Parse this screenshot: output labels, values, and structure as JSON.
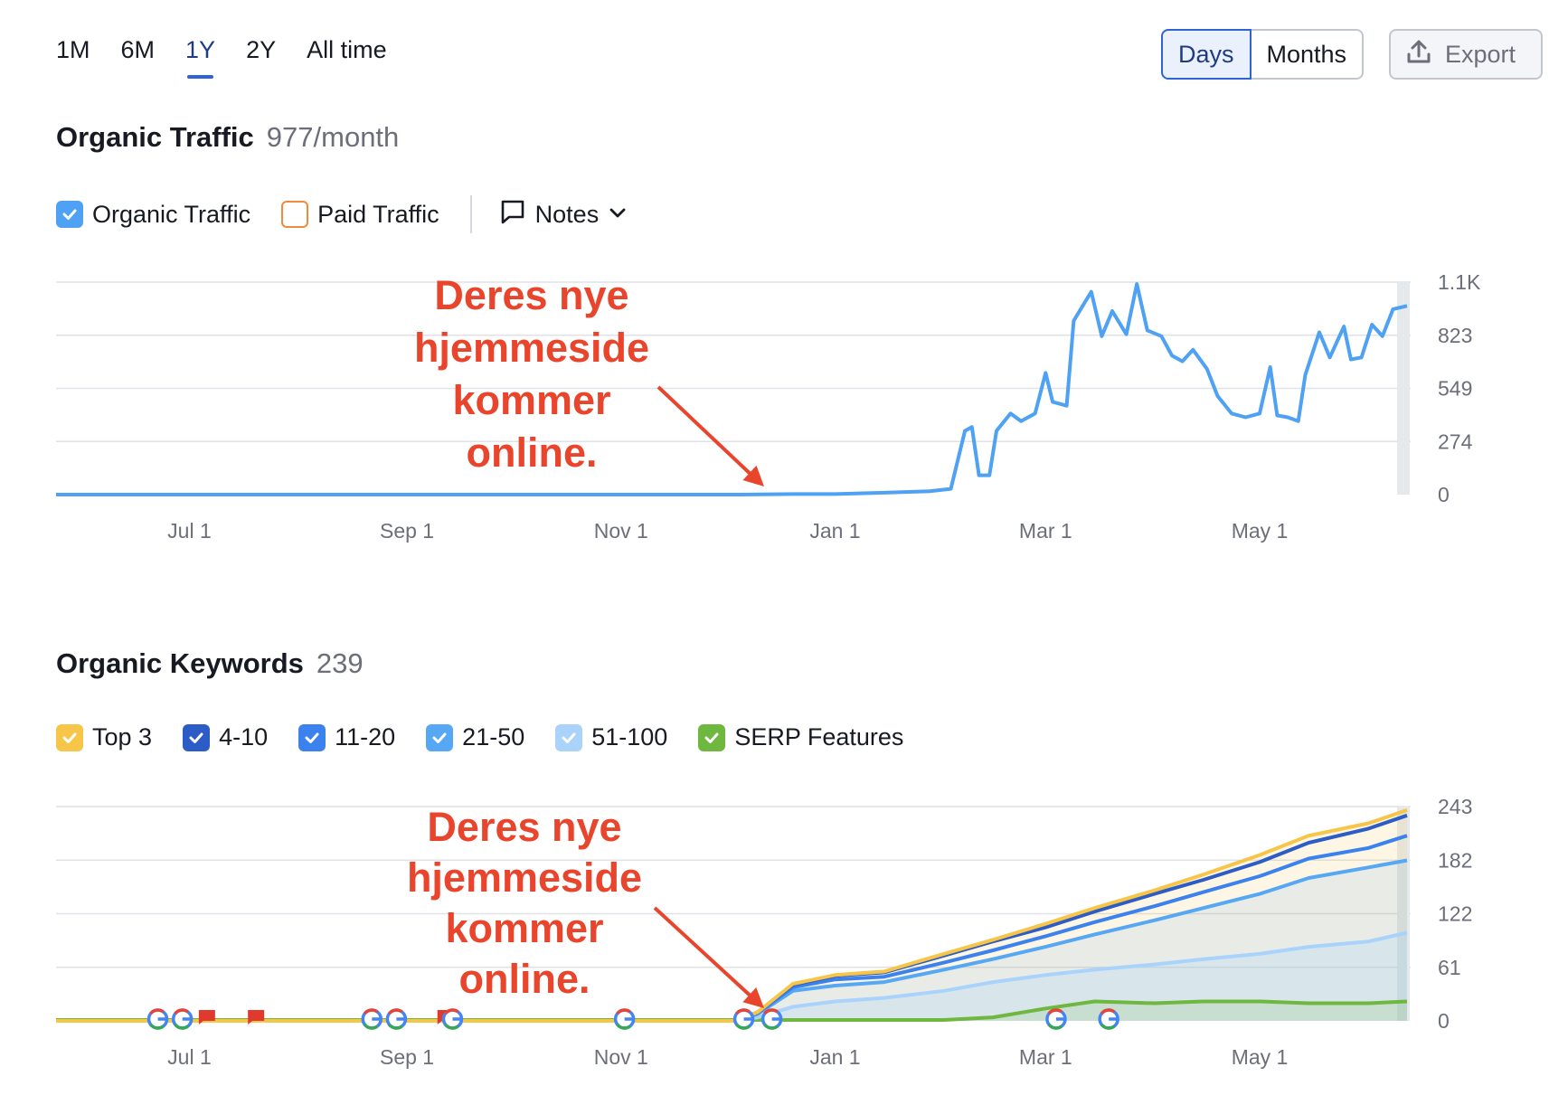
{
  "period_tabs": [
    {
      "label": "1M",
      "active": false
    },
    {
      "label": "6M",
      "active": false
    },
    {
      "label": "1Y",
      "active": true
    },
    {
      "label": "2Y",
      "active": false
    },
    {
      "label": "All time",
      "active": false
    }
  ],
  "unit_toggle": {
    "days": "Days",
    "months": "Months",
    "selected": "Days"
  },
  "export": {
    "label": "Export",
    "icon": "upload-icon"
  },
  "traffic": {
    "title": "Organic Traffic",
    "value": "977/month",
    "legend": [
      {
        "label": "Organic Traffic",
        "checked": true,
        "color": "#4ea1f3"
      },
      {
        "label": "Paid Traffic",
        "checked": false,
        "color": "#f08a3c"
      }
    ],
    "notes_label": "Notes"
  },
  "keywords": {
    "title": "Organic Keywords",
    "value": "239",
    "legend": [
      {
        "label": "Top 3",
        "checked": true,
        "color": "#f7c548"
      },
      {
        "label": "4-10",
        "checked": true,
        "color": "#2c5cc5"
      },
      {
        "label": "11-20",
        "checked": true,
        "color": "#3b82ef"
      },
      {
        "label": "21-50",
        "checked": true,
        "color": "#56a8f5"
      },
      {
        "label": "51-100",
        "checked": true,
        "color": "#a9d3fb"
      },
      {
        "label": "SERP Features",
        "checked": true,
        "color": "#6fb83f"
      }
    ]
  },
  "annotation": {
    "lines": [
      "Deres nye",
      "hjemmeside",
      "kommer",
      "online."
    ],
    "color": "#e8452c"
  },
  "chart_data": [
    {
      "type": "line",
      "title": "Organic Traffic",
      "x_ticks": [
        "Jul 1",
        "Sep 1",
        "Nov 1",
        "Jan 1",
        "Mar 1",
        "May 1"
      ],
      "y_ticks": [
        "0",
        "274",
        "549",
        "823",
        "1.1K"
      ],
      "ylim": [
        0,
        1100
      ],
      "series": [
        {
          "name": "Organic Traffic",
          "color": "#4ea1f3",
          "points": [
            [
              "2023-05-24",
              0
            ],
            [
              "2023-12-05",
              0
            ],
            [
              "2023-12-20",
              3
            ],
            [
              "2024-01-01",
              3
            ],
            [
              "2024-01-15",
              10
            ],
            [
              "2024-01-28",
              18
            ],
            [
              "2024-02-03",
              30
            ],
            [
              "2024-02-07",
              330
            ],
            [
              "2024-02-09",
              350
            ],
            [
              "2024-02-11",
              100
            ],
            [
              "2024-02-14",
              100
            ],
            [
              "2024-02-16",
              330
            ],
            [
              "2024-02-20",
              420
            ],
            [
              "2024-02-23",
              380
            ],
            [
              "2024-02-27",
              420
            ],
            [
              "2024-03-01",
              630
            ],
            [
              "2024-03-03",
              480
            ],
            [
              "2024-03-07",
              460
            ],
            [
              "2024-03-09",
              900
            ],
            [
              "2024-03-12",
              990
            ],
            [
              "2024-03-14",
              1050
            ],
            [
              "2024-03-17",
              820
            ],
            [
              "2024-03-20",
              950
            ],
            [
              "2024-03-24",
              830
            ],
            [
              "2024-03-27",
              1090
            ],
            [
              "2024-03-30",
              850
            ],
            [
              "2024-04-03",
              820
            ],
            [
              "2024-04-06",
              720
            ],
            [
              "2024-04-09",
              690
            ],
            [
              "2024-04-12",
              750
            ],
            [
              "2024-04-16",
              650
            ],
            [
              "2024-04-19",
              510
            ],
            [
              "2024-04-23",
              420
            ],
            [
              "2024-04-27",
              400
            ],
            [
              "2024-05-01",
              420
            ],
            [
              "2024-05-04",
              660
            ],
            [
              "2024-05-06",
              410
            ],
            [
              "2024-05-09",
              400
            ],
            [
              "2024-05-12",
              380
            ],
            [
              "2024-05-14",
              620
            ],
            [
              "2024-05-18",
              840
            ],
            [
              "2024-05-21",
              710
            ],
            [
              "2024-05-25",
              870
            ],
            [
              "2024-05-27",
              700
            ],
            [
              "2024-05-30",
              710
            ],
            [
              "2024-06-02",
              880
            ],
            [
              "2024-06-05",
              820
            ],
            [
              "2024-06-08",
              960
            ],
            [
              "2024-06-12",
              977
            ]
          ]
        }
      ]
    },
    {
      "type": "area",
      "title": "Organic Keywords",
      "x_ticks": [
        "Jul 1",
        "Sep 1",
        "Nov 1",
        "Jan 1",
        "Mar 1",
        "May 1"
      ],
      "y_ticks": [
        "0",
        "61",
        "122",
        "182",
        "243"
      ],
      "ylim": [
        0,
        243
      ],
      "x_dates": [
        "2023-05-24",
        "2023-12-04",
        "2023-12-10",
        "2023-12-20",
        "2024-01-01",
        "2024-01-15",
        "2024-02-01",
        "2024-02-15",
        "2024-03-01",
        "2024-03-15",
        "2024-04-01",
        "2024-04-15",
        "2024-05-01",
        "2024-05-15",
        "2024-06-01",
        "2024-06-12"
      ],
      "series": [
        {
          "name": "Top 3",
          "color": "#f7c548",
          "values": [
            0,
            0,
            10,
            42,
            52,
            56,
            76,
            92,
            110,
            128,
            148,
            166,
            188,
            210,
            224,
            239
          ]
        },
        {
          "name": "4-10",
          "color": "#2c5cc5",
          "values": [
            0,
            0,
            10,
            41,
            51,
            55,
            74,
            90,
            106,
            124,
            144,
            160,
            180,
            202,
            218,
            233
          ]
        },
        {
          "name": "11-20",
          "color": "#3b82ef",
          "values": [
            0,
            0,
            9,
            38,
            47,
            50,
            66,
            80,
            96,
            112,
            130,
            146,
            164,
            184,
            196,
            210
          ]
        },
        {
          "name": "21-50",
          "color": "#56a8f5",
          "values": [
            0,
            0,
            8,
            34,
            40,
            44,
            58,
            70,
            84,
            98,
            114,
            128,
            144,
            162,
            174,
            182
          ]
        },
        {
          "name": "51-100",
          "color": "#a9d3fb",
          "values": [
            0,
            0,
            4,
            16,
            22,
            26,
            34,
            44,
            52,
            58,
            64,
            70,
            76,
            84,
            90,
            100
          ]
        },
        {
          "name": "SERP Features",
          "color": "#6fb83f",
          "values": [
            1,
            1,
            1,
            1,
            1,
            1,
            1,
            4,
            14,
            22,
            20,
            22,
            22,
            20,
            20,
            22
          ]
        }
      ],
      "markers": [
        {
          "type": "google",
          "date": "2023-06-22"
        },
        {
          "type": "google",
          "date": "2023-06-29"
        },
        {
          "type": "flag",
          "date": "2023-07-06"
        },
        {
          "type": "flag",
          "date": "2023-07-20"
        },
        {
          "type": "google",
          "date": "2023-08-22"
        },
        {
          "type": "google",
          "date": "2023-08-29"
        },
        {
          "type": "flag",
          "date": "2023-09-12"
        },
        {
          "type": "google",
          "date": "2023-09-14"
        },
        {
          "type": "google",
          "date": "2023-11-02"
        },
        {
          "type": "google",
          "date": "2023-12-06"
        },
        {
          "type": "google",
          "date": "2023-12-14"
        },
        {
          "type": "google",
          "date": "2024-03-04"
        },
        {
          "type": "google",
          "date": "2024-03-19"
        }
      ]
    }
  ]
}
